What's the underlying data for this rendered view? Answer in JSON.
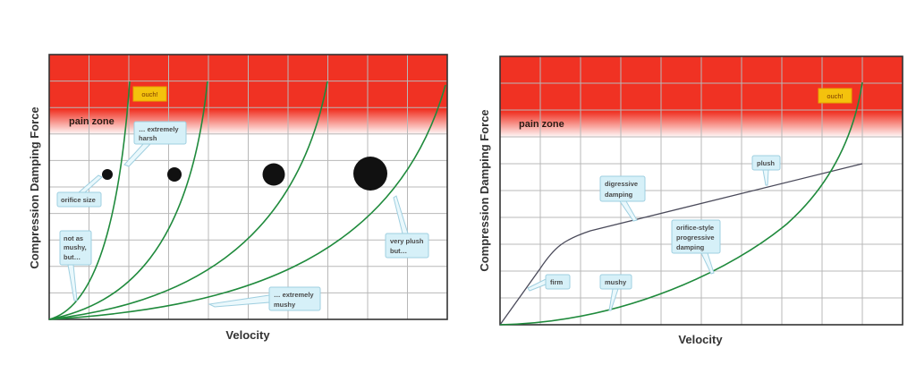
{
  "colors": {
    "pain_zone": "#f03223",
    "curve_green": "#1f8a3c",
    "curve_dark": "#4a4a5a",
    "callout_fill": "#d6f0f8",
    "ouch_fill": "#f4c20d",
    "orifice_dot": "#111111"
  },
  "left_chart": {
    "y_axis_label": "Compression Damping Force",
    "x_axis_label": "Velocity",
    "pain_zone_label": "pain zone",
    "ouch_label": "ouch!",
    "callouts": {
      "harsh": [
        "… extremely",
        "harsh"
      ],
      "orifice_size": [
        "orifice size"
      ],
      "not_as_mushy": [
        "not as",
        "mushy,",
        "but…"
      ],
      "extremely_mushy": [
        "… extremely",
        "mushy"
      ],
      "very_plush": [
        "very plush",
        "but…"
      ]
    },
    "orifice_sizes": [
      "small",
      "medium",
      "large",
      "extra-large"
    ],
    "curves": [
      "small-orifice steep progressive",
      "medium progressive",
      "large progressive",
      "extra-large gentle progressive"
    ]
  },
  "right_chart": {
    "y_axis_label": "Compression Damping Force",
    "x_axis_label": "Velocity",
    "pain_zone_label": "pain zone",
    "ouch_label": "ouch!",
    "callouts": {
      "plush": [
        "plush"
      ],
      "digressive": [
        "digressive",
        "damping"
      ],
      "orifice_style": [
        "orifice-style",
        "progressive",
        "damping"
      ],
      "firm": [
        "firm"
      ],
      "mushy": [
        "mushy"
      ]
    },
    "curves": [
      "digressive damping",
      "orifice-style progressive damping"
    ]
  }
}
